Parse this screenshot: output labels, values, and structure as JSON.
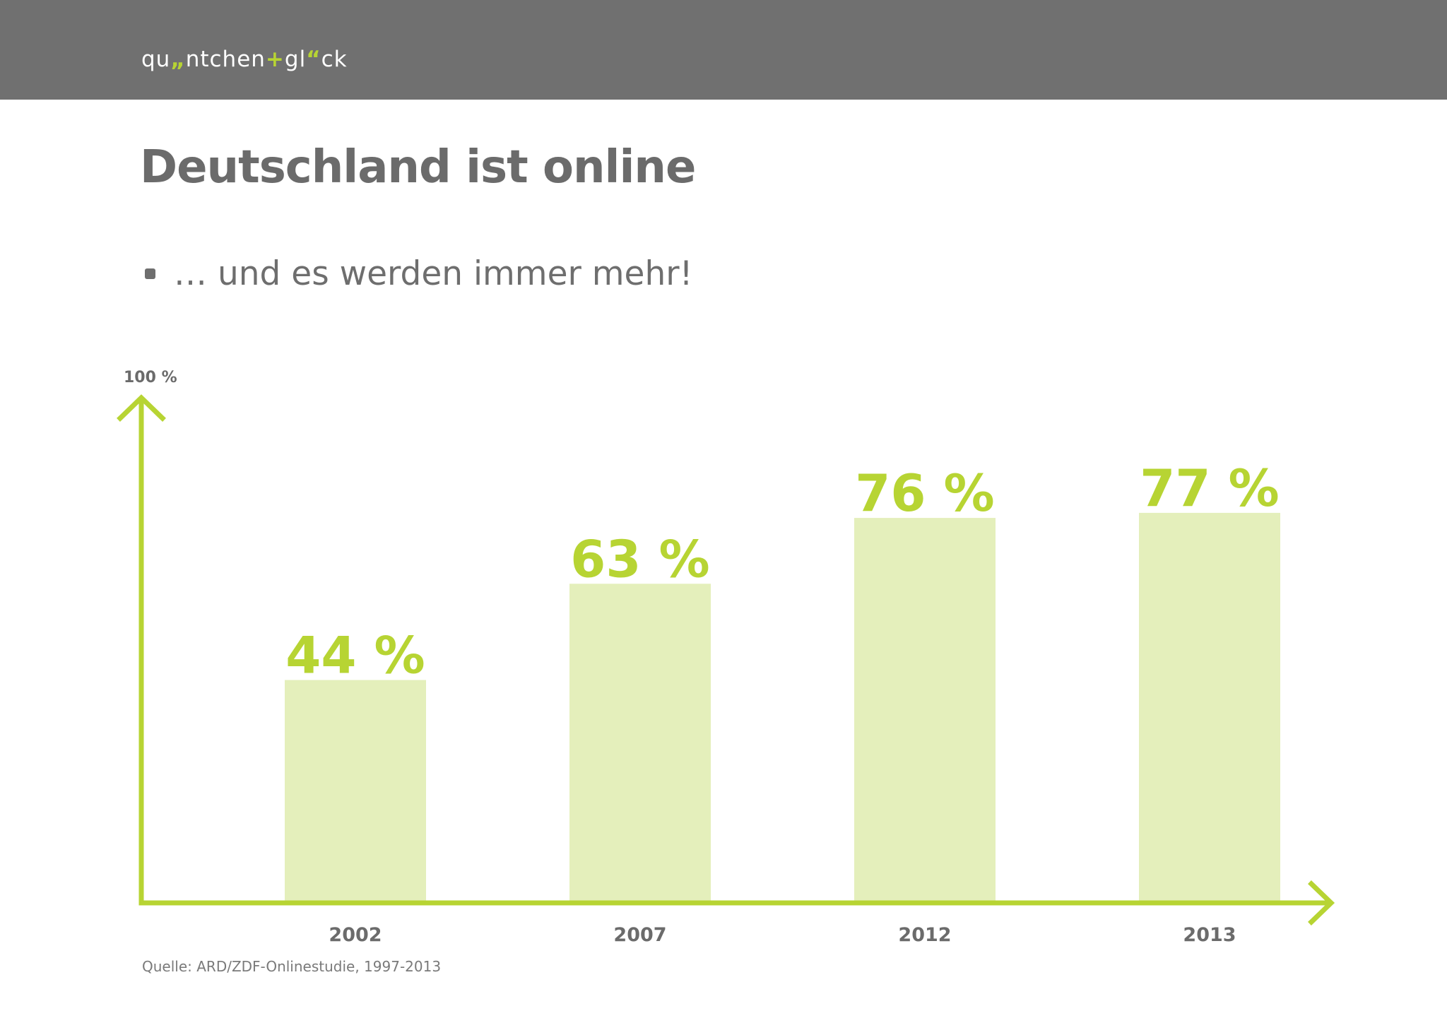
{
  "header": {
    "logo_parts": {
      "p1": "qu",
      "p2": "„",
      "p3": "ntchen",
      "p4": "+",
      "p5": "gl",
      "p6": "“",
      "p7": "ck"
    }
  },
  "title": "Deutschland ist online",
  "bullet": "… und es werden immer mehr!",
  "source": "Quelle: ARD/ZDF-Onlinestudie, 1997-2013",
  "colors": {
    "accent": "#b7d433",
    "bar_fill": "#e4efbb",
    "header_bg": "#707070",
    "text": "#6e6e6e"
  },
  "chart_data": {
    "type": "bar",
    "categories": [
      "2002",
      "2007",
      "2012",
      "2013"
    ],
    "values": [
      44,
      63,
      76,
      77
    ],
    "data_labels": [
      "44 %",
      "63 %",
      "76 %",
      "77 %"
    ],
    "ylim": [
      0,
      100
    ],
    "ymax_label": "100 %",
    "title": "",
    "xlabel": "",
    "ylabel": "",
    "grid": false,
    "legend": "none"
  }
}
